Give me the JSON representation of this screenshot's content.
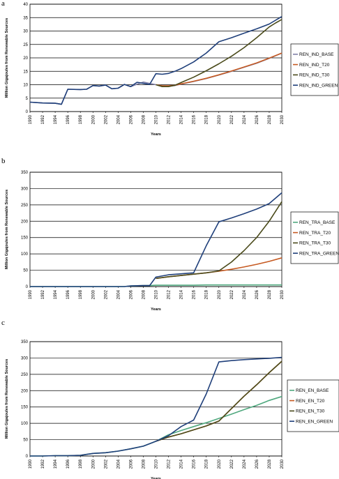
{
  "chart_data": [
    {
      "panel": "a",
      "type": "line",
      "xlabel": "Years",
      "ylabel": "Million Gigajoules from Renewable Sources",
      "ylim": [
        0,
        40
      ],
      "yticks": [
        0,
        5,
        10,
        15,
        20,
        25,
        30,
        35,
        40
      ],
      "xticks": [
        "1990",
        "1992",
        "1994",
        "1996",
        "1998",
        "2000",
        "2002",
        "2004",
        "2006",
        "2008",
        "2010",
        "2012",
        "2014",
        "2016",
        "2018",
        "2020",
        "2022",
        "2024",
        "2026",
        "2028",
        "2030"
      ],
      "grid": "horizontal",
      "legend": "right",
      "series": [
        {
          "name": "REN_IND_BASE",
          "color": "#7f7fa6",
          "x": [
            1990,
            1992,
            1994,
            1995,
            1996,
            1998,
            1999,
            2000,
            2001,
            2002,
            2003,
            2004,
            2005,
            2006,
            2007,
            2008,
            2009,
            2010,
            2011,
            2012,
            2013,
            2014,
            2016,
            2018,
            2020,
            2022,
            2024,
            2026,
            2028,
            2030
          ],
          "y": [
            3.5,
            3.2,
            3.1,
            2.7,
            8.3,
            8.2,
            8.3,
            9.7,
            9.5,
            9.9,
            8.5,
            8.7,
            10.1,
            9.3,
            10.2,
            11,
            10.5,
            10,
            9.6,
            9.5,
            9.7,
            10.2,
            11.2,
            12.3,
            13.6,
            15,
            16.5,
            18,
            19.8,
            21.8
          ]
        },
        {
          "name": "REN_IND_T20",
          "color": "#c65a22",
          "x": [
            2010,
            2011,
            2012,
            2013,
            2014,
            2016,
            2018,
            2020,
            2022,
            2024,
            2026,
            2028,
            2030
          ],
          "y": [
            10,
            9.6,
            9.6,
            9.8,
            10.3,
            11.3,
            12.4,
            13.7,
            15.1,
            16.6,
            18.1,
            19.9,
            21.8
          ]
        },
        {
          "name": "REN_IND_T30",
          "color": "#4a4a1a",
          "x": [
            2010,
            2011,
            2012,
            2013,
            2014,
            2016,
            2018,
            2020,
            2022,
            2024,
            2026,
            2028,
            2029,
            2030
          ],
          "y": [
            10,
            9.3,
            9.3,
            9.8,
            10.8,
            12.8,
            15.2,
            17.8,
            20.6,
            23.8,
            27.5,
            31.5,
            33,
            34.3
          ]
        },
        {
          "name": "REN_IND_GREEN",
          "color": "#1f3f7a",
          "x": [
            1990,
            1992,
            1994,
            1995,
            1996,
            1998,
            1999,
            2000,
            2001,
            2002,
            2003,
            2004,
            2005,
            2006,
            2007,
            2008,
            2009,
            2010,
            2011,
            2012,
            2013,
            2014,
            2016,
            2018,
            2020,
            2022,
            2024,
            2026,
            2028,
            2030
          ],
          "y": [
            3.5,
            3.2,
            3.1,
            2.7,
            8.3,
            8.2,
            8.3,
            9.7,
            9.5,
            9.9,
            8.5,
            8.7,
            10.1,
            9.3,
            10.9,
            10.5,
            10.1,
            14.1,
            13.9,
            14.2,
            15,
            16,
            18.5,
            21.8,
            26,
            27.5,
            29.2,
            30.8,
            32.6,
            35.4
          ]
        }
      ]
    },
    {
      "panel": "b",
      "type": "line",
      "xlabel": "Years",
      "ylabel": "Million Gigajoules from Renewable Sources",
      "ylim": [
        0,
        350
      ],
      "yticks": [
        0,
        50,
        100,
        150,
        200,
        250,
        300,
        350
      ],
      "xticks": [
        "1990",
        "1992",
        "1994",
        "1996",
        "1998",
        "2000",
        "2002",
        "2004",
        "2006",
        "2008",
        "2010",
        "2012",
        "2014",
        "2016",
        "2018",
        "2020",
        "2022",
        "2024",
        "2026",
        "2028",
        "2030"
      ],
      "grid": "horizontal",
      "legend": "right",
      "series": [
        {
          "name": "REN_TRA_BASE",
          "color": "#4fa87e",
          "x": [
            1990,
            2005,
            2006,
            2008,
            2009,
            2010,
            2012,
            2014,
            2016,
            2018,
            2020,
            2022,
            2024,
            2026,
            2028,
            2030
          ],
          "y": [
            0,
            0,
            2,
            3,
            3,
            4,
            4,
            4,
            4,
            5,
            5,
            5,
            5,
            5,
            5,
            5
          ]
        },
        {
          "name": "REN_TRA_T20",
          "color": "#c65a22",
          "x": [
            2010,
            2012,
            2014,
            2016,
            2018,
            2020,
            2022,
            2024,
            2026,
            2028,
            2030
          ],
          "y": [
            25,
            30,
            34,
            38,
            42,
            47,
            53,
            60,
            68,
            77,
            88
          ]
        },
        {
          "name": "REN_TRA_T30",
          "color": "#4a4a1a",
          "x": [
            2010,
            2012,
            2014,
            2016,
            2018,
            2020,
            2022,
            2024,
            2026,
            2028,
            2030
          ],
          "y": [
            25,
            30,
            34,
            38,
            42,
            48,
            75,
            110,
            150,
            200,
            260
          ]
        },
        {
          "name": "REN_TRA_GREEN",
          "color": "#1f3f7a",
          "x": [
            1990,
            2005,
            2006,
            2008,
            2009,
            2010,
            2012,
            2014,
            2016,
            2018,
            2020,
            2022,
            2024,
            2026,
            2028,
            2030
          ],
          "y": [
            0,
            0,
            2,
            3,
            3,
            29,
            36,
            39,
            42,
            125,
            198,
            210,
            223,
            237,
            254,
            287
          ]
        }
      ]
    },
    {
      "panel": "c",
      "type": "line",
      "xlabel": "Years",
      "ylabel": "Million Gigajoules from Renewable Sources",
      "ylim": [
        0,
        350
      ],
      "yticks": [
        0,
        50,
        100,
        150,
        200,
        250,
        300,
        350
      ],
      "xticks": [
        "1990",
        "1992",
        "1994",
        "1996",
        "1998",
        "2000",
        "2002",
        "2004",
        "2006",
        "2008",
        "2010",
        "2012",
        "2014",
        "2016",
        "2018",
        "2020",
        "2022",
        "2024",
        "2026",
        "2028",
        "2030"
      ],
      "grid": "horizontal",
      "legend": "right",
      "series": [
        {
          "name": "REN_EN_BASE",
          "color": "#4fa87e",
          "x": [
            1990,
            1992,
            1994,
            1996,
            1998,
            2000,
            2002,
            2004,
            2006,
            2008,
            2010,
            2012,
            2014,
            2016,
            2018,
            2020,
            2022,
            2024,
            2026,
            2028,
            2030
          ],
          "y": [
            0,
            0,
            1,
            1,
            2,
            8,
            10,
            15,
            22,
            30,
            45,
            65,
            78,
            90,
            102,
            115,
            128,
            142,
            155,
            170,
            182
          ]
        },
        {
          "name": "REN_EN_T20",
          "color": "#c65a22",
          "x": [
            2010,
            2012,
            2014,
            2016,
            2018,
            2020,
            2022,
            2024,
            2026,
            2028,
            2030
          ],
          "y": [
            45,
            58,
            68,
            80,
            92,
            107,
            145,
            183,
            218,
            255,
            290
          ]
        },
        {
          "name": "REN_EN_T30",
          "color": "#4a4a1a",
          "x": [
            2010,
            2012,
            2014,
            2016,
            2018,
            2020,
            2022,
            2024,
            2026,
            2028,
            2030
          ],
          "y": [
            45,
            58,
            68,
            80,
            92,
            107,
            145,
            183,
            218,
            255,
            290
          ]
        },
        {
          "name": "REN_EN_GREEN",
          "color": "#1f3f7a",
          "x": [
            1990,
            1992,
            1994,
            1996,
            1998,
            2000,
            2002,
            2004,
            2006,
            2008,
            2010,
            2012,
            2014,
            2016,
            2018,
            2020,
            2022,
            2024,
            2026,
            2028,
            2030
          ],
          "y": [
            0,
            0,
            1,
            1,
            2,
            8,
            10,
            15,
            22,
            30,
            45,
            62,
            90,
            110,
            190,
            288,
            292,
            295,
            297,
            299,
            302
          ]
        }
      ]
    }
  ]
}
